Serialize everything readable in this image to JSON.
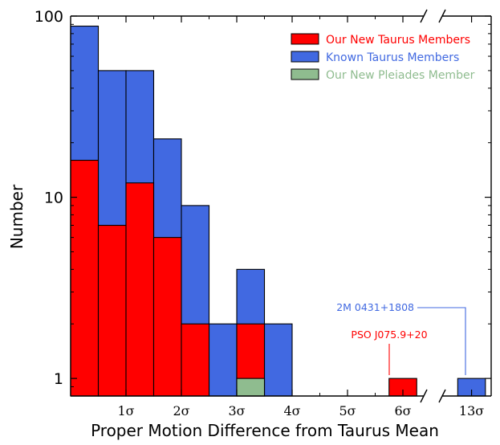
{
  "chart_data": {
    "type": "bar",
    "xlabel": "Proper Motion Difference from Taurus Mean",
    "ylabel": "Number",
    "yscale": "log",
    "ylim": [
      0.8,
      100
    ],
    "y_ticks": [
      {
        "value": 1,
        "label": "1"
      },
      {
        "value": 10,
        "label": "10"
      },
      {
        "value": 100,
        "label": "100"
      }
    ],
    "x_ticks": [
      "1σ",
      "2σ",
      "3σ",
      "4σ",
      "5σ",
      "6σ",
      "13σ"
    ],
    "axis_break": true,
    "bin_width_sigma": 0.5,
    "series": [
      {
        "name": "Known Taurus Members",
        "color": "#4169E1",
        "bins": [
          {
            "x0": 0.0,
            "x1": 0.5,
            "count": 88
          },
          {
            "x0": 0.5,
            "x1": 1.0,
            "count": 50
          },
          {
            "x0": 1.0,
            "x1": 1.5,
            "count": 50
          },
          {
            "x0": 1.5,
            "x1": 2.0,
            "count": 21
          },
          {
            "x0": 2.0,
            "x1": 2.5,
            "count": 9
          },
          {
            "x0": 2.5,
            "x1": 3.0,
            "count": 2
          },
          {
            "x0": 3.0,
            "x1": 3.5,
            "count": 4
          },
          {
            "x0": 3.5,
            "x1": 4.0,
            "count": 2
          },
          {
            "x0": 12.75,
            "x1": 13.25,
            "count": 1
          }
        ]
      },
      {
        "name": "Our New Taurus Members",
        "color": "#FF0000",
        "bins": [
          {
            "x0": 0.0,
            "x1": 0.5,
            "count": 16
          },
          {
            "x0": 0.5,
            "x1": 1.0,
            "count": 7
          },
          {
            "x0": 1.0,
            "x1": 1.5,
            "count": 12
          },
          {
            "x0": 1.5,
            "x1": 2.0,
            "count": 6
          },
          {
            "x0": 2.0,
            "x1": 2.5,
            "count": 2
          },
          {
            "x0": 3.0,
            "x1": 3.5,
            "count": 2
          },
          {
            "x0": 5.75,
            "x1": 6.25,
            "count": 1
          }
        ]
      },
      {
        "name": "Our New Pleiades Member",
        "color": "#8FBC8F",
        "bins": [
          {
            "x0": 3.0,
            "x1": 3.5,
            "count": 1
          }
        ]
      }
    ],
    "annotations": [
      {
        "text": "2M 0431+1808",
        "color": "#4169E1",
        "x": 13.0,
        "y": 1
      },
      {
        "text": "PSO J075.9+20",
        "color": "#FF0000",
        "x": 6.0,
        "y": 1
      }
    ],
    "legend_position": "top-right"
  }
}
